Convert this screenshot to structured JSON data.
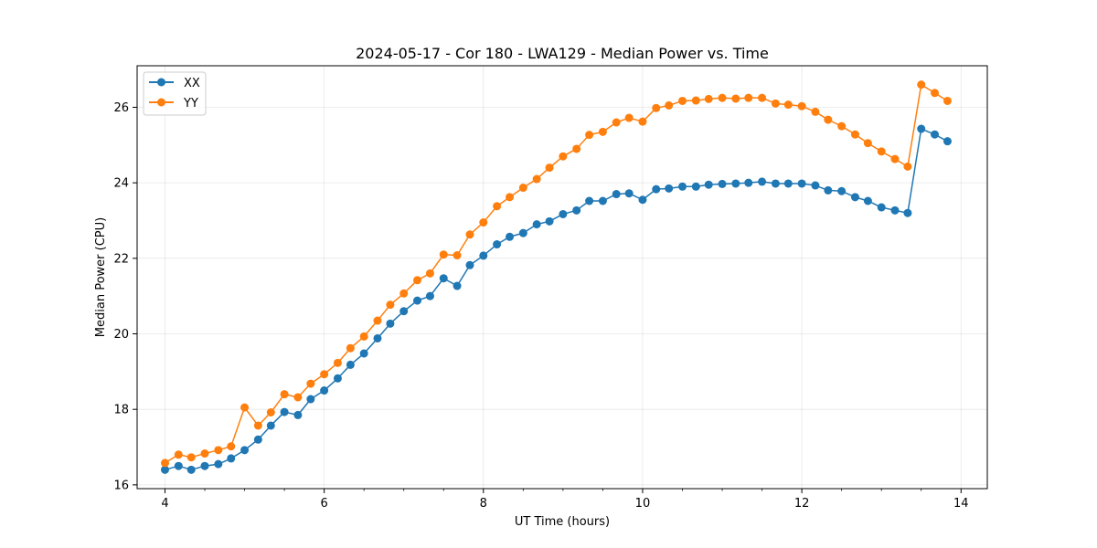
{
  "chart_data": {
    "type": "line",
    "title": "2024-05-17 - Cor 180 - LWA129 - Median Power vs. Time",
    "xlabel": "UT Time (hours)",
    "ylabel": "Median Power (CPU)",
    "xlim": [
      3.65,
      14.33
    ],
    "ylim": [
      15.9,
      27.1
    ],
    "xticks": [
      4,
      6,
      8,
      10,
      12,
      14
    ],
    "yticks": [
      16,
      18,
      20,
      22,
      24,
      26
    ],
    "grid": true,
    "legend_position": "top-left",
    "x": [
      4.0,
      4.17,
      4.33,
      4.5,
      4.67,
      4.83,
      5.0,
      5.17,
      5.33,
      5.5,
      5.67,
      5.83,
      6.0,
      6.17,
      6.33,
      6.5,
      6.67,
      6.83,
      7.0,
      7.17,
      7.33,
      7.5,
      7.67,
      7.83,
      8.0,
      8.17,
      8.33,
      8.5,
      8.67,
      8.83,
      9.0,
      9.17,
      9.33,
      9.5,
      9.67,
      9.83,
      10.0,
      10.17,
      10.33,
      10.5,
      10.67,
      10.83,
      11.0,
      11.17,
      11.33,
      11.5,
      11.67,
      11.83,
      12.0,
      12.17,
      12.33,
      12.5,
      12.67,
      12.83,
      13.0,
      13.17,
      13.33,
      13.5,
      13.67,
      13.83
    ],
    "series": [
      {
        "name": "XX",
        "color": "#1f77b4",
        "values": [
          16.4,
          16.5,
          16.4,
          16.5,
          16.55,
          16.7,
          16.92,
          17.2,
          17.57,
          17.93,
          17.85,
          18.27,
          18.5,
          18.82,
          19.18,
          19.48,
          19.88,
          20.27,
          20.6,
          20.88,
          21.0,
          21.47,
          21.27,
          21.82,
          22.07,
          22.37,
          22.57,
          22.67,
          22.9,
          22.98,
          23.17,
          23.27,
          23.52,
          23.52,
          23.7,
          23.72,
          23.55,
          23.83,
          23.85,
          23.9,
          23.9,
          23.95,
          23.97,
          23.98,
          24.0,
          24.03,
          23.98,
          23.98,
          23.98,
          23.93,
          23.8,
          23.78,
          23.62,
          23.52,
          23.35,
          23.27,
          23.2,
          25.43,
          25.28,
          25.1
        ]
      },
      {
        "name": "YY",
        "color": "#ff7f0e",
        "values": [
          16.58,
          16.8,
          16.73,
          16.83,
          16.92,
          17.02,
          18.05,
          17.57,
          17.92,
          18.4,
          18.32,
          18.68,
          18.93,
          19.23,
          19.62,
          19.93,
          20.35,
          20.77,
          21.07,
          21.42,
          21.6,
          22.1,
          22.08,
          22.63,
          22.95,
          23.38,
          23.62,
          23.87,
          24.1,
          24.4,
          24.7,
          24.9,
          25.27,
          25.35,
          25.6,
          25.72,
          25.62,
          25.98,
          26.05,
          26.17,
          26.18,
          26.22,
          26.25,
          26.23,
          26.25,
          26.25,
          26.1,
          26.07,
          26.03,
          25.88,
          25.67,
          25.5,
          25.28,
          25.05,
          24.83,
          24.63,
          24.43,
          26.6,
          26.38,
          26.17
        ]
      }
    ]
  }
}
